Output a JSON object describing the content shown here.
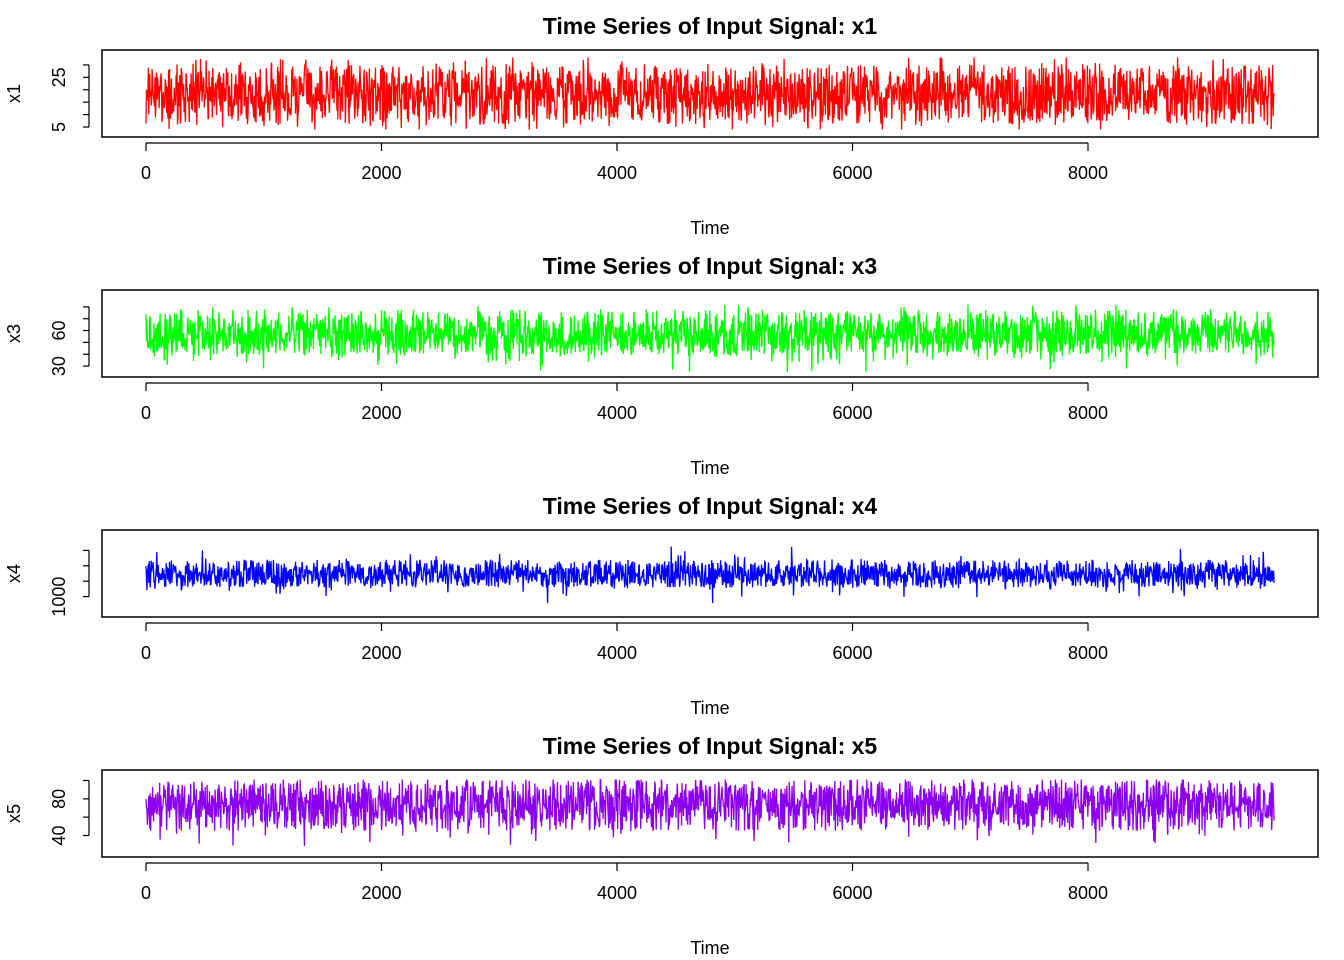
{
  "chart_data": [
    {
      "type": "line",
      "title": "Time Series of Input Signal: x1",
      "xlabel": "Time",
      "ylabel": "x1",
      "xlim": [
        0,
        9600
      ],
      "ylim": [
        3,
        34
      ],
      "x_ticks": [
        0,
        2000,
        4000,
        6000,
        8000
      ],
      "x_tick_labels": [
        "0",
        "2000",
        "4000",
        "6000",
        "8000"
      ],
      "y_ticks": [
        5,
        10,
        15,
        20,
        25,
        30
      ],
      "y_tick_labels": [
        "5",
        "",
        "",
        "",
        "25",
        ""
      ],
      "grid": false,
      "series": [
        {
          "color": "#ff0000",
          "x_start": 0,
          "x_end": 9580,
          "n_points": 9580,
          "center": 18,
          "low": 6,
          "high": 30,
          "min": 4,
          "max": 33
        }
      ]
    },
    {
      "type": "line",
      "title": "Time Series of Input Signal: x3",
      "xlabel": "Time",
      "ylabel": "x3",
      "xlim": [
        0,
        9600
      ],
      "ylim": [
        25,
        90
      ],
      "x_ticks": [
        0,
        2000,
        4000,
        6000,
        8000
      ],
      "x_tick_labels": [
        "0",
        "2000",
        "4000",
        "6000",
        "8000"
      ],
      "y_ticks": [
        30,
        40,
        50,
        60,
        70,
        80
      ],
      "y_tick_labels": [
        "30",
        "",
        "",
        "60",
        "",
        ""
      ],
      "grid": false,
      "series": [
        {
          "color": "#00ff00",
          "x_start": 0,
          "x_end": 9580,
          "n_points": 9580,
          "center": 55,
          "low": 40,
          "high": 78,
          "min": 25,
          "max": 82
        }
      ]
    },
    {
      "type": "line",
      "title": "Time Series of Input Signal: x4",
      "xlabel": "Time",
      "ylabel": "x4",
      "xlim": [
        0,
        9600
      ],
      "ylim": [
        500,
        3000
      ],
      "x_ticks": [
        0,
        2000,
        4000,
        6000,
        8000
      ],
      "x_tick_labels": [
        "0",
        "2000",
        "4000",
        "6000",
        "8000"
      ],
      "y_ticks": [
        1000,
        1500,
        2000,
        2500
      ],
      "y_tick_labels": [
        "1000",
        "",
        "",
        ""
      ],
      "grid": false,
      "series": [
        {
          "color": "#0000ff",
          "x_start": 0,
          "x_end": 9580,
          "n_points": 9580,
          "center": 1700,
          "low": 1300,
          "high": 2200,
          "min": 600,
          "max": 2700
        }
      ]
    },
    {
      "type": "line",
      "title": "Time Series of Input Signal: x5",
      "xlabel": "Time",
      "ylabel": "x5",
      "xlim": [
        0,
        9600
      ],
      "ylim": [
        22,
        106
      ],
      "x_ticks": [
        0,
        2000,
        4000,
        6000,
        8000
      ],
      "x_tick_labels": [
        "0",
        "2000",
        "4000",
        "6000",
        "8000"
      ],
      "y_ticks": [
        40,
        60,
        80,
        100
      ],
      "y_tick_labels": [
        "40",
        "",
        "80",
        ""
      ],
      "grid": false,
      "series": [
        {
          "color": "#8b00ee",
          "x_start": 0,
          "x_end": 9580,
          "n_points": 9580,
          "center": 75,
          "low": 45,
          "high": 100,
          "min": 28,
          "max": 101
        }
      ]
    }
  ]
}
